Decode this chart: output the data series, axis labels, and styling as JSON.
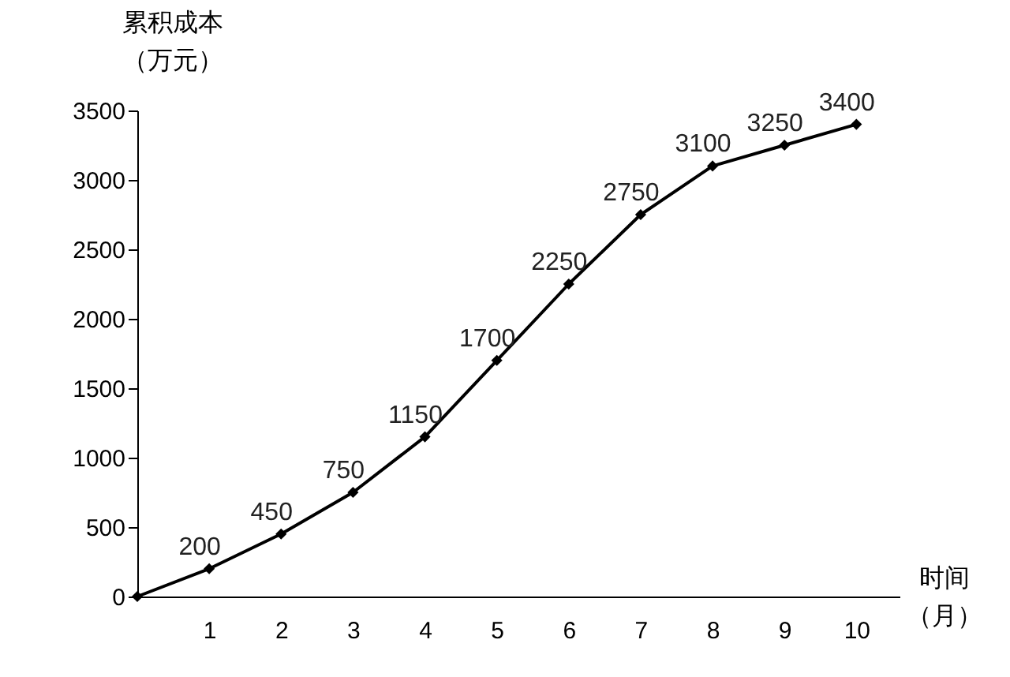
{
  "chart_data": {
    "type": "line",
    "xlabel": "时间（月）",
    "ylabel": "累积成本（万元）",
    "x": [
      0,
      1,
      2,
      3,
      4,
      5,
      6,
      7,
      8,
      9,
      10
    ],
    "series": [
      {
        "color": "#000000",
        "values": [
          0,
          200,
          450,
          750,
          1150,
          1700,
          2250,
          2750,
          3100,
          3250,
          3400
        ],
        "value_labels": [
          null,
          "200",
          "450",
          "750",
          "1150",
          "1700",
          "2250",
          "2750",
          "3100",
          "3250",
          "3400"
        ]
      }
    ],
    "xlim": [
      0,
      10.6
    ],
    "xticks": [
      1,
      2,
      3,
      4,
      5,
      6,
      7,
      8,
      9,
      10
    ],
    "ylim": [
      0,
      3500
    ],
    "yticks": [
      0,
      500,
      1000,
      1500,
      2000,
      2500,
      3000,
      3500
    ],
    "grid": false,
    "marker": "diamond",
    "line_style": "solid"
  }
}
